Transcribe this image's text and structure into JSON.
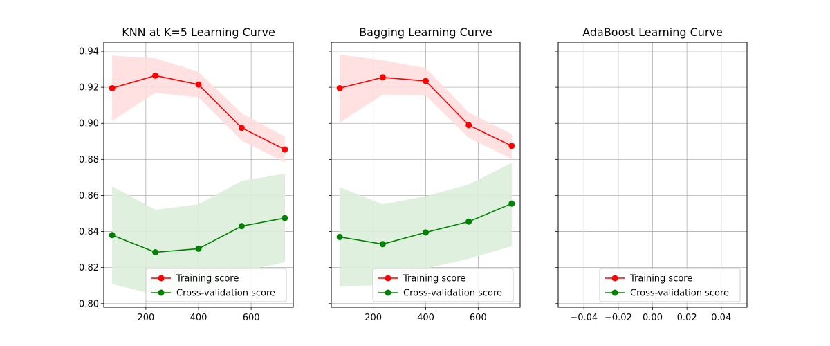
{
  "chart_data": [
    {
      "type": "line",
      "title": "KNN at K=5 Learning Curve",
      "x": [
        72,
        236,
        400,
        564,
        728
      ],
      "xticks": [
        "200",
        "400",
        "600"
      ],
      "xtick_values": [
        200,
        400,
        600
      ],
      "xlim": [
        40,
        760
      ],
      "ylim": [
        0.798,
        0.945
      ],
      "yticks": [
        "0.80",
        "0.82",
        "0.84",
        "0.86",
        "0.88",
        "0.90",
        "0.92",
        "0.94"
      ],
      "ytick_values": [
        0.8,
        0.82,
        0.84,
        0.86,
        0.88,
        0.9,
        0.92,
        0.94
      ],
      "grid": true,
      "legend_position": "lower-right",
      "series": [
        {
          "name": "Training score",
          "color": "#ff0000",
          "band_color": "#ffdede",
          "values": [
            0.9195,
            0.9265,
            0.9215,
            0.8975,
            0.8855
          ],
          "lower": [
            0.9015,
            0.917,
            0.9145,
            0.8905,
            0.8785
          ],
          "upper": [
            0.9375,
            0.936,
            0.9285,
            0.9055,
            0.8925
          ]
        },
        {
          "name": "Cross-validation score",
          "color": "#008000",
          "band_color": "#dcefdc",
          "values": [
            0.838,
            0.8285,
            0.8305,
            0.843,
            0.8475
          ],
          "lower": [
            0.811,
            0.805,
            0.806,
            0.818,
            0.823
          ],
          "upper": [
            0.865,
            0.852,
            0.855,
            0.868,
            0.872
          ]
        }
      ]
    },
    {
      "type": "line",
      "title": "Bagging Learning Curve",
      "x": [
        72,
        236,
        400,
        564,
        728
      ],
      "xticks": [
        "200",
        "400",
        "600"
      ],
      "xtick_values": [
        200,
        400,
        600
      ],
      "xlim": [
        40,
        760
      ],
      "ylim": [
        0.798,
        0.945
      ],
      "yticks": [],
      "ytick_values": [
        0.8,
        0.82,
        0.84,
        0.86,
        0.88,
        0.9,
        0.92,
        0.94
      ],
      "grid": true,
      "legend_position": "lower-right",
      "series": [
        {
          "name": "Training score",
          "color": "#ff0000",
          "band_color": "#ffdede",
          "values": [
            0.9195,
            0.9255,
            0.9235,
            0.899,
            0.8875
          ],
          "lower": [
            0.9005,
            0.916,
            0.9155,
            0.892,
            0.8805
          ],
          "upper": [
            0.938,
            0.935,
            0.9305,
            0.906,
            0.894
          ]
        },
        {
          "name": "Cross-validation score",
          "color": "#008000",
          "band_color": "#dcefdc",
          "values": [
            0.837,
            0.833,
            0.8395,
            0.8455,
            0.8555
          ],
          "lower": [
            0.8095,
            0.8105,
            0.8195,
            0.825,
            0.832
          ],
          "upper": [
            0.8645,
            0.855,
            0.8595,
            0.866,
            0.878
          ]
        }
      ]
    },
    {
      "type": "line",
      "title": "AdaBoost Learning Curve",
      "x": [],
      "xticks": [
        "−0.04",
        "−0.02",
        "0.00",
        "0.02",
        "0.04"
      ],
      "xtick_values": [
        -0.04,
        -0.02,
        0.0,
        0.02,
        0.04
      ],
      "xlim": [
        -0.055,
        0.055
      ],
      "ylim": [
        0.798,
        0.945
      ],
      "yticks": [],
      "ytick_values": [
        0.8,
        0.82,
        0.84,
        0.86,
        0.88,
        0.9,
        0.92,
        0.94
      ],
      "grid": true,
      "legend_position": "lower-right",
      "series": [
        {
          "name": "Training score",
          "color": "#ff0000",
          "band_color": "#ffdede",
          "values": [],
          "lower": [],
          "upper": []
        },
        {
          "name": "Cross-validation score",
          "color": "#008000",
          "band_color": "#dcefdc",
          "values": [],
          "lower": [],
          "upper": []
        }
      ]
    }
  ]
}
